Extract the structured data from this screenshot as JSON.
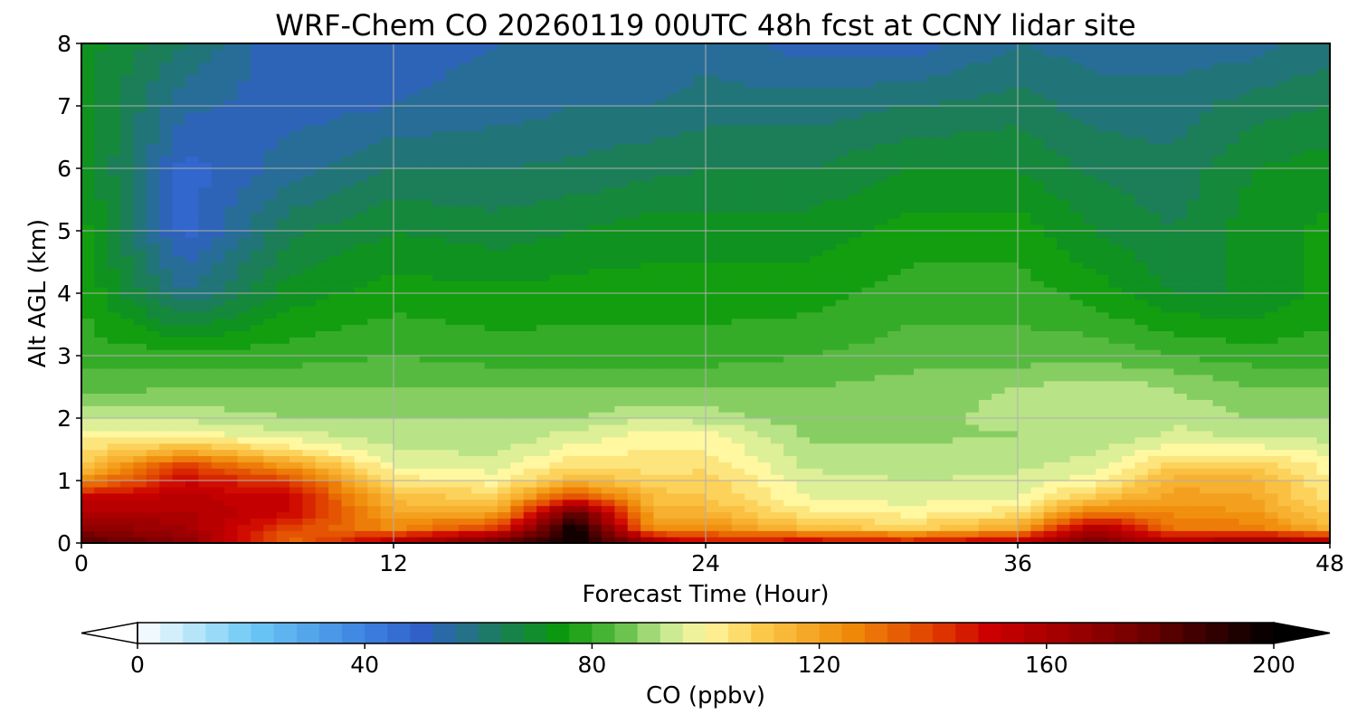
{
  "chart_data": {
    "type": "heatmap",
    "title": "WRF-Chem CO  20260119 00UTC 48h fcst at CCNY lidar site",
    "xlabel": "Forecast Time (Hour)",
    "ylabel": "Alt AGL (km)",
    "xlim": [
      0,
      48
    ],
    "ylim": [
      0,
      8
    ],
    "x_ticks": [
      0,
      12,
      24,
      36,
      48
    ],
    "y_ticks": [
      0,
      1,
      2,
      3,
      4,
      5,
      6,
      7,
      8
    ],
    "grid": true,
    "colorbar": {
      "label": "CO  (ppbv)",
      "range": [
        0,
        200
      ],
      "ticks": [
        0,
        40,
        80,
        120,
        160,
        200
      ],
      "extend": "both",
      "stops": [
        {
          "v": 0,
          "c": "#ffffff"
        },
        {
          "v": 20,
          "c": "#6ccaf5"
        },
        {
          "v": 40,
          "c": "#3c82e0"
        },
        {
          "v": 50,
          "c": "#3060c8"
        },
        {
          "v": 65,
          "c": "#1a8050"
        },
        {
          "v": 75,
          "c": "#0a9a0a"
        },
        {
          "v": 85,
          "c": "#60be46"
        },
        {
          "v": 93,
          "c": "#c4e890"
        },
        {
          "v": 100,
          "c": "#fff8a0"
        },
        {
          "v": 110,
          "c": "#fbc84a"
        },
        {
          "v": 125,
          "c": "#f08c0a"
        },
        {
          "v": 140,
          "c": "#e04000"
        },
        {
          "v": 150,
          "c": "#cc0000"
        },
        {
          "v": 175,
          "c": "#780000"
        },
        {
          "v": 200,
          "c": "#000000"
        }
      ]
    },
    "alt_km": [
      0,
      0.25,
      0.5,
      0.75,
      1.0,
      1.25,
      1.5,
      1.75,
      2.0,
      2.5,
      3.0,
      4.0,
      5.0,
      6.0,
      7.0,
      8.0
    ],
    "series": [
      {
        "hour": 0,
        "co": [
          185,
          170,
          160,
          150,
          125,
          110,
          105,
          100,
          94,
          84,
          80,
          78,
          76,
          74,
          72,
          72
        ]
      },
      {
        "hour": 4,
        "co": [
          170,
          162,
          158,
          155,
          150,
          140,
          115,
          100,
          93,
          86,
          80,
          58,
          48,
          48,
          55,
          62
        ]
      },
      {
        "hour": 8,
        "co": [
          130,
          140,
          150,
          150,
          140,
          120,
          104,
          95,
          90,
          86,
          80,
          72,
          65,
          56,
          52,
          50
        ]
      },
      {
        "hour": 12,
        "co": [
          160,
          125,
          118,
          112,
          104,
          98,
          94,
          92,
          90,
          86,
          82,
          76,
          70,
          62,
          54,
          52
        ]
      },
      {
        "hour": 16,
        "co": [
          180,
          140,
          118,
          108,
          100,
          96,
          93,
          91,
          90,
          86,
          80,
          75,
          68,
          62,
          56,
          54
        ]
      },
      {
        "hour": 19,
        "co": [
          200,
          200,
          180,
          140,
          115,
          105,
          100,
          95,
          90,
          86,
          80,
          76,
          70,
          63,
          58,
          55
        ]
      },
      {
        "hour": 22,
        "co": [
          165,
          122,
          116,
          112,
          108,
          104,
          102,
          100,
          94,
          86,
          80,
          76,
          72,
          65,
          58,
          55
        ]
      },
      {
        "hour": 24,
        "co": [
          150,
          125,
          115,
          110,
          108,
          105,
          102,
          100,
          92,
          86,
          80,
          76,
          72,
          66,
          60,
          56
        ]
      },
      {
        "hour": 28,
        "co": [
          155,
          112,
          102,
          98,
          96,
          93,
          91,
          89,
          88,
          86,
          82,
          76,
          72,
          66,
          60,
          52
        ]
      },
      {
        "hour": 32,
        "co": [
          150,
          108,
          100,
          96,
          94,
          92,
          91,
          89,
          88,
          88,
          84,
          80,
          76,
          70,
          62,
          52
        ]
      },
      {
        "hour": 36,
        "co": [
          158,
          118,
          104,
          98,
          95,
          93,
          91,
          90,
          92,
          90,
          84,
          80,
          76,
          70,
          64,
          58
        ]
      },
      {
        "hour": 39,
        "co": [
          175,
          160,
          128,
          110,
          100,
          96,
          93,
          90,
          94,
          92,
          85,
          76,
          70,
          65,
          60,
          56
        ]
      },
      {
        "hour": 42,
        "co": [
          160,
          130,
          125,
          120,
          116,
          108,
          100,
          95,
          93,
          90,
          82,
          70,
          66,
          63,
          60,
          56
        ]
      },
      {
        "hour": 45,
        "co": [
          170,
          128,
          122,
          118,
          115,
          110,
          100,
          93,
          90,
          86,
          80,
          70,
          72,
          70,
          64,
          56
        ]
      },
      {
        "hour": 48,
        "co": [
          165,
          115,
          108,
          104,
          102,
          100,
          96,
          92,
          90,
          86,
          80,
          76,
          75,
          72,
          66,
          60
        ]
      }
    ]
  }
}
